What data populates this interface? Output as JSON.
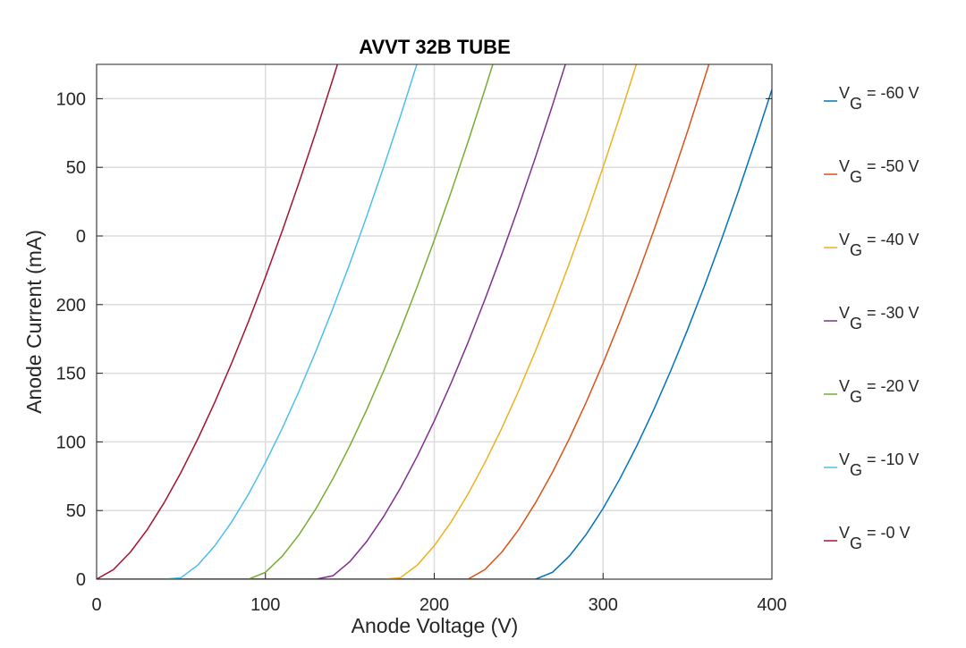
{
  "chart_data": {
    "type": "line",
    "title": "AVVT 32B TUBE",
    "xlabel": "Anode Voltage (V)",
    "ylabel": "Anode Current (mA)",
    "x": [
      0,
      10,
      20,
      30,
      40,
      50,
      60,
      70,
      80,
      90,
      100,
      110,
      120,
      130,
      140,
      150,
      160,
      170,
      180,
      190,
      200,
      210,
      220,
      230,
      240,
      250,
      260,
      270,
      280,
      290,
      300,
      310,
      320,
      330,
      340,
      350,
      360,
      370,
      380,
      390,
      400
    ],
    "xlim": [
      0,
      400
    ],
    "xticks": [
      0,
      100,
      200,
      300,
      400
    ],
    "ylim": [
      0,
      375
    ],
    "yticks": [
      0,
      50,
      100,
      150,
      200,
      {
        "value": 250,
        "label": "0"
      },
      {
        "value": 300,
        "label": "50"
      },
      {
        "value": 350,
        "label": "100"
      }
    ],
    "grid": true,
    "legend": "outside-right",
    "series": [
      {
        "name": "VG = -60 V",
        "color": "#0072BD",
        "values": [
          0,
          0,
          0,
          0,
          0,
          0,
          0,
          0,
          0,
          0,
          0,
          0,
          0,
          0,
          0,
          0,
          0,
          0,
          0,
          0,
          0,
          0,
          0,
          0,
          0,
          0,
          0,
          5.0,
          16.8,
          32.6,
          51.5,
          73.2,
          97.2,
          123.4,
          151.6,
          181.6,
          213.4,
          246.9,
          282.0,
          318.6,
          356.6
        ]
      },
      {
        "name": "VG = -50 V",
        "color": "#D95319",
        "values": [
          0,
          0,
          0,
          0,
          0,
          0,
          0,
          0,
          0,
          0,
          0,
          0,
          0,
          0,
          0,
          0,
          0,
          0,
          0,
          0,
          0,
          0,
          0,
          7.0,
          19.7,
          36.1,
          55.7,
          77.8,
          102.3,
          128.9,
          157.4,
          187.8,
          220,
          253.8,
          289.2,
          326.1,
          364.5,
          404.1,
          null,
          null,
          null
        ]
      },
      {
        "name": "VG = -40 V",
        "color": "#EDB120",
        "values": [
          0,
          0,
          0,
          0,
          0,
          0,
          0,
          0,
          0,
          0,
          0,
          0,
          0,
          0,
          0,
          0,
          0,
          0,
          1.1,
          10.3,
          24.3,
          41.7,
          62.0,
          84.9,
          110.0,
          137.2,
          166.4,
          197.3,
          230,
          264.3,
          300.1,
          337.4,
          376.2,
          null,
          null,
          null,
          null,
          null,
          null,
          null,
          null
        ]
      },
      {
        "name": "VG = -30 V",
        "color": "#7E2F8E",
        "values": [
          0,
          0,
          0,
          0,
          0,
          0,
          0,
          0,
          0,
          0,
          0,
          0,
          0,
          0,
          2.5,
          12.8,
          27.5,
          45.6,
          66.4,
          89.7,
          115.3,
          142.9,
          172.4,
          203.7,
          236.7,
          271.3,
          307.5,
          345.1,
          384.1,
          null,
          null,
          null,
          null,
          null,
          null,
          null,
          null,
          null,
          null,
          null,
          null
        ]
      },
      {
        "name": "VG = -20 V",
        "color": "#77AC30",
        "values": [
          0,
          0,
          0,
          0,
          0,
          0,
          0,
          0,
          0,
          0,
          5.0,
          16.8,
          32.6,
          51.5,
          73.2,
          97.2,
          123.4,
          151.6,
          181.6,
          213.4,
          246.9,
          282.0,
          318.6,
          356.6,
          396,
          null,
          null,
          null,
          null,
          null,
          null,
          null,
          null,
          null,
          null,
          null,
          null,
          null,
          null,
          null,
          null
        ]
      },
      {
        "name": "VG = -10 V",
        "color": "#4DBEEE",
        "values": [
          0,
          0,
          0,
          0,
          0,
          1.1,
          10.3,
          24.3,
          41.7,
          62.0,
          84.9,
          110.0,
          137.2,
          166.4,
          197.3,
          230,
          264.3,
          300.1,
          337.4,
          376.2,
          null,
          null,
          null,
          null,
          null,
          null,
          null,
          null,
          null,
          null,
          null,
          null,
          null,
          null,
          null,
          null,
          null,
          null,
          null,
          null,
          null
        ]
      },
      {
        "name": "VG = -0 V",
        "color": "#A2142F",
        "values": [
          0,
          7.0,
          19.7,
          36.1,
          55.7,
          77.8,
          102.3,
          128.9,
          157.4,
          187.8,
          220,
          253.8,
          289.2,
          326.1,
          364.5,
          404.1,
          null,
          null,
          null,
          null,
          null,
          null,
          null,
          null,
          null,
          null,
          null,
          null,
          null,
          null,
          null,
          null,
          null,
          null,
          null,
          null,
          null,
          null,
          null,
          null,
          null
        ]
      }
    ]
  }
}
